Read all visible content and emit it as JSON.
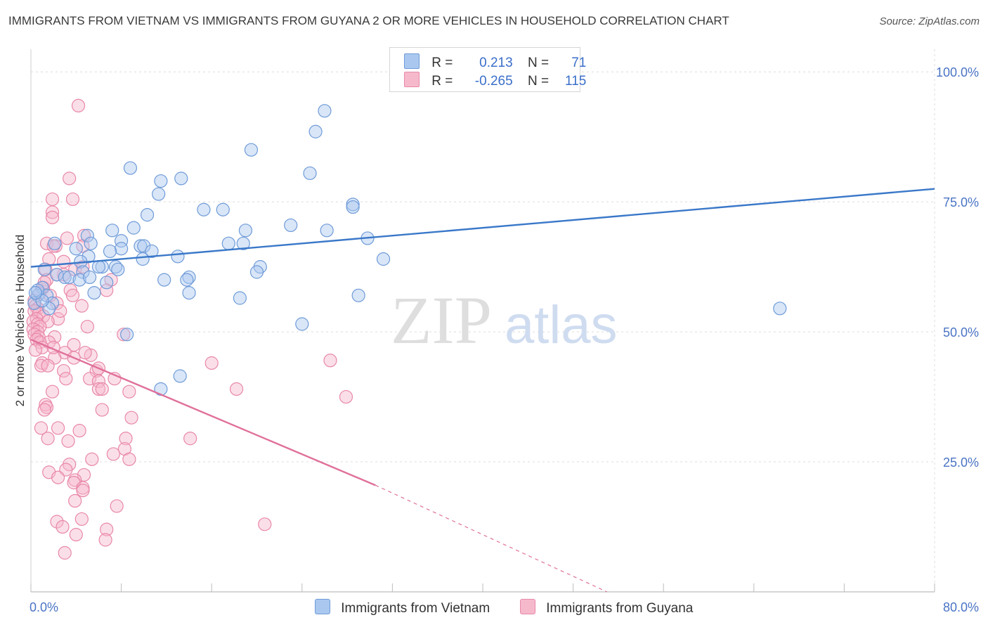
{
  "header": {
    "title": "IMMIGRANTS FROM VIETNAM VS IMMIGRANTS FROM GUYANA 2 OR MORE VEHICLES IN HOUSEHOLD CORRELATION CHART",
    "source": "Source: ZipAtlas.com"
  },
  "watermark": {
    "zip": "ZIP",
    "atlas": "atlas"
  },
  "legend": {
    "rows": [
      {
        "r_label": "R =",
        "r_value": "0.213",
        "n_label": "N =",
        "n_value": "71"
      },
      {
        "r_label": "R =",
        "r_value": "-0.265",
        "n_label": "N =",
        "n_value": "115"
      }
    ]
  },
  "colors": {
    "vietnam_fill": "#aac8ef",
    "vietnam_stroke": "#6f9bd8",
    "vietnam_line": "#3a78c9",
    "guyana_fill": "#f6b9cc",
    "guyana_stroke": "#e888a8",
    "guyana_line": "#e0709a",
    "grid": "#dcdcdc"
  },
  "chart_data": {
    "type": "scatter",
    "xlabel": "",
    "ylabel": "2 or more Vehicles in Household",
    "xlim": [
      0,
      80
    ],
    "ylim": [
      0,
      103
    ],
    "x_tick_labels": [
      {
        "value": 0,
        "label": "0.0%"
      },
      {
        "value": 80,
        "label": "80.0%"
      }
    ],
    "y_tick_labels": [
      {
        "value": 25,
        "label": "25.0%"
      },
      {
        "value": 50,
        "label": "50.0%"
      },
      {
        "value": 75,
        "label": "75.0%"
      },
      {
        "value": 100,
        "label": "100.0%"
      }
    ],
    "legend_position": "top-center",
    "grid": true,
    "series": [
      {
        "name": "Immigrants from Vietnam",
        "points": [
          [
            26.0,
            92.5
          ],
          [
            25.2,
            88.5
          ],
          [
            19.5,
            85.0
          ],
          [
            8.8,
            81.5
          ],
          [
            24.7,
            80.5
          ],
          [
            13.3,
            79.5
          ],
          [
            11.5,
            79.0
          ],
          [
            11.3,
            76.5
          ],
          [
            28.5,
            74.5
          ],
          [
            28.5,
            74.0
          ],
          [
            15.3,
            73.5
          ],
          [
            17.0,
            73.5
          ],
          [
            10.3,
            72.5
          ],
          [
            23.0,
            70.5
          ],
          [
            9.1,
            70.0
          ],
          [
            7.2,
            69.5
          ],
          [
            19.0,
            69.5
          ],
          [
            26.2,
            69.5
          ],
          [
            5.0,
            68.5
          ],
          [
            29.8,
            68.0
          ],
          [
            8.0,
            67.5
          ],
          [
            2.1,
            67.0
          ],
          [
            5.3,
            67.0
          ],
          [
            9.7,
            66.5
          ],
          [
            10.0,
            66.5
          ],
          [
            8.0,
            66.0
          ],
          [
            17.5,
            67.0
          ],
          [
            18.8,
            67.0
          ],
          [
            4.0,
            66.0
          ],
          [
            10.7,
            65.5
          ],
          [
            7.0,
            65.5
          ],
          [
            13.0,
            64.5
          ],
          [
            5.1,
            64.5
          ],
          [
            9.9,
            64.0
          ],
          [
            31.2,
            64.0
          ],
          [
            4.4,
            63.5
          ],
          [
            6.3,
            62.5
          ],
          [
            6.0,
            62.5
          ],
          [
            7.5,
            62.5
          ],
          [
            1.2,
            62.0
          ],
          [
            20.3,
            62.5
          ],
          [
            4.6,
            61.5
          ],
          [
            7.7,
            62.0
          ],
          [
            2.3,
            61.0
          ],
          [
            20.0,
            61.5
          ],
          [
            3.0,
            60.5
          ],
          [
            3.4,
            60.5
          ],
          [
            4.3,
            60.0
          ],
          [
            5.2,
            60.5
          ],
          [
            14.0,
            60.5
          ],
          [
            11.8,
            60.0
          ],
          [
            13.8,
            60.0
          ],
          [
            6.7,
            59.5
          ],
          [
            1.0,
            58.5
          ],
          [
            14.0,
            57.5
          ],
          [
            5.6,
            57.5
          ],
          [
            29.0,
            57.0
          ],
          [
            0.6,
            57.0
          ],
          [
            18.5,
            56.5
          ],
          [
            1.4,
            57.0
          ],
          [
            66.3,
            54.5
          ],
          [
            1.9,
            55.5
          ],
          [
            1.6,
            54.5
          ],
          [
            24.0,
            51.5
          ],
          [
            8.5,
            49.5
          ],
          [
            13.2,
            41.5
          ],
          [
            11.5,
            39.0
          ],
          [
            0.3,
            55.5
          ],
          [
            0.6,
            58.0
          ],
          [
            1.0,
            56.0
          ],
          [
            0.4,
            57.5
          ]
        ],
        "trend": {
          "x": [
            0,
            80
          ],
          "y": [
            62.5,
            77.5
          ]
        }
      },
      {
        "name": "Immigrants from Guyana",
        "points": [
          [
            4.2,
            93.5
          ],
          [
            3.4,
            79.5
          ],
          [
            1.9,
            75.5
          ],
          [
            3.7,
            75.5
          ],
          [
            1.9,
            73.0
          ],
          [
            1.9,
            72.0
          ],
          [
            4.7,
            68.5
          ],
          [
            3.2,
            68.0
          ],
          [
            1.4,
            67.0
          ],
          [
            2.2,
            66.5
          ],
          [
            2.0,
            66.5
          ],
          [
            4.6,
            66.5
          ],
          [
            1.6,
            64.0
          ],
          [
            2.9,
            63.5
          ],
          [
            3.9,
            62.0
          ],
          [
            1.3,
            62.0
          ],
          [
            2.9,
            61.0
          ],
          [
            2.3,
            61.0
          ],
          [
            1.4,
            60.0
          ],
          [
            7.1,
            60.0
          ],
          [
            1.1,
            58.5
          ],
          [
            3.5,
            58.0
          ],
          [
            6.7,
            58.0
          ],
          [
            0.8,
            57.5
          ],
          [
            1.7,
            57.0
          ],
          [
            0.3,
            56.0
          ],
          [
            2.3,
            55.5
          ],
          [
            0.4,
            55.0
          ],
          [
            0.6,
            54.5
          ],
          [
            4.5,
            55.0
          ],
          [
            0.3,
            54.0
          ],
          [
            0.7,
            53.5
          ],
          [
            1.1,
            53.0
          ],
          [
            0.5,
            52.5
          ],
          [
            0.2,
            52.0
          ],
          [
            2.4,
            52.5
          ],
          [
            1.5,
            52.0
          ],
          [
            0.6,
            51.5
          ],
          [
            0.8,
            51.0
          ],
          [
            5.0,
            51.0
          ],
          [
            0.2,
            50.5
          ],
          [
            0.6,
            50.0
          ],
          [
            8.2,
            49.5
          ],
          [
            0.3,
            49.5
          ],
          [
            0.7,
            49.0
          ],
          [
            2.1,
            49.0
          ],
          [
            0.5,
            48.5
          ],
          [
            1.6,
            48.0
          ],
          [
            0.8,
            48.0
          ],
          [
            3.8,
            47.5
          ],
          [
            1.0,
            47.0
          ],
          [
            3.0,
            46.0
          ],
          [
            5.3,
            45.5
          ],
          [
            3.8,
            45.0
          ],
          [
            2.1,
            45.0
          ],
          [
            1.0,
            44.0
          ],
          [
            16.0,
            44.0
          ],
          [
            26.5,
            44.5
          ],
          [
            0.9,
            43.5
          ],
          [
            1.5,
            43.5
          ],
          [
            5.8,
            42.5
          ],
          [
            2.9,
            42.5
          ],
          [
            7.4,
            41.0
          ],
          [
            3.1,
            41.0
          ],
          [
            5.2,
            41.0
          ],
          [
            6.0,
            40.5
          ],
          [
            6.0,
            39.0
          ],
          [
            18.2,
            39.0
          ],
          [
            6.3,
            39.0
          ],
          [
            1.9,
            38.5
          ],
          [
            8.7,
            38.5
          ],
          [
            27.9,
            37.5
          ],
          [
            1.3,
            36.0
          ],
          [
            1.4,
            35.5
          ],
          [
            6.3,
            35.0
          ],
          [
            1.2,
            35.0
          ],
          [
            8.9,
            33.5
          ],
          [
            0.9,
            31.5
          ],
          [
            2.4,
            31.5
          ],
          [
            4.3,
            31.0
          ],
          [
            1.5,
            29.5
          ],
          [
            8.4,
            29.5
          ],
          [
            14.1,
            29.5
          ],
          [
            3.3,
            29.0
          ],
          [
            8.3,
            27.5
          ],
          [
            7.3,
            26.5
          ],
          [
            5.4,
            25.5
          ],
          [
            8.7,
            25.5
          ],
          [
            3.4,
            24.5
          ],
          [
            3.1,
            23.5
          ],
          [
            1.6,
            23.0
          ],
          [
            4.7,
            22.5
          ],
          [
            2.4,
            22.0
          ],
          [
            3.9,
            21.5
          ],
          [
            3.8,
            21.0
          ],
          [
            4.6,
            20.0
          ],
          [
            4.6,
            19.5
          ],
          [
            3.9,
            17.5
          ],
          [
            7.6,
            16.5
          ],
          [
            2.3,
            13.5
          ],
          [
            4.5,
            14.0
          ],
          [
            20.7,
            13.0
          ],
          [
            2.8,
            12.5
          ],
          [
            6.7,
            12.0
          ],
          [
            4.0,
            11.0
          ],
          [
            6.6,
            10.0
          ],
          [
            3.0,
            7.5
          ],
          [
            6.0,
            43.0
          ],
          [
            4.8,
            46.0
          ],
          [
            2.6,
            54.0
          ],
          [
            3.7,
            57.0
          ],
          [
            1.2,
            59.5
          ],
          [
            4.6,
            62.5
          ],
          [
            2.0,
            47.0
          ],
          [
            0.4,
            46.5
          ]
        ],
        "trend": {
          "x": [
            0,
            30.5
          ],
          "y": [
            48.5,
            20.5
          ]
        },
        "trend_extension": {
          "x": [
            30.5,
            51
          ],
          "y": [
            20.5,
            0
          ]
        }
      }
    ]
  }
}
